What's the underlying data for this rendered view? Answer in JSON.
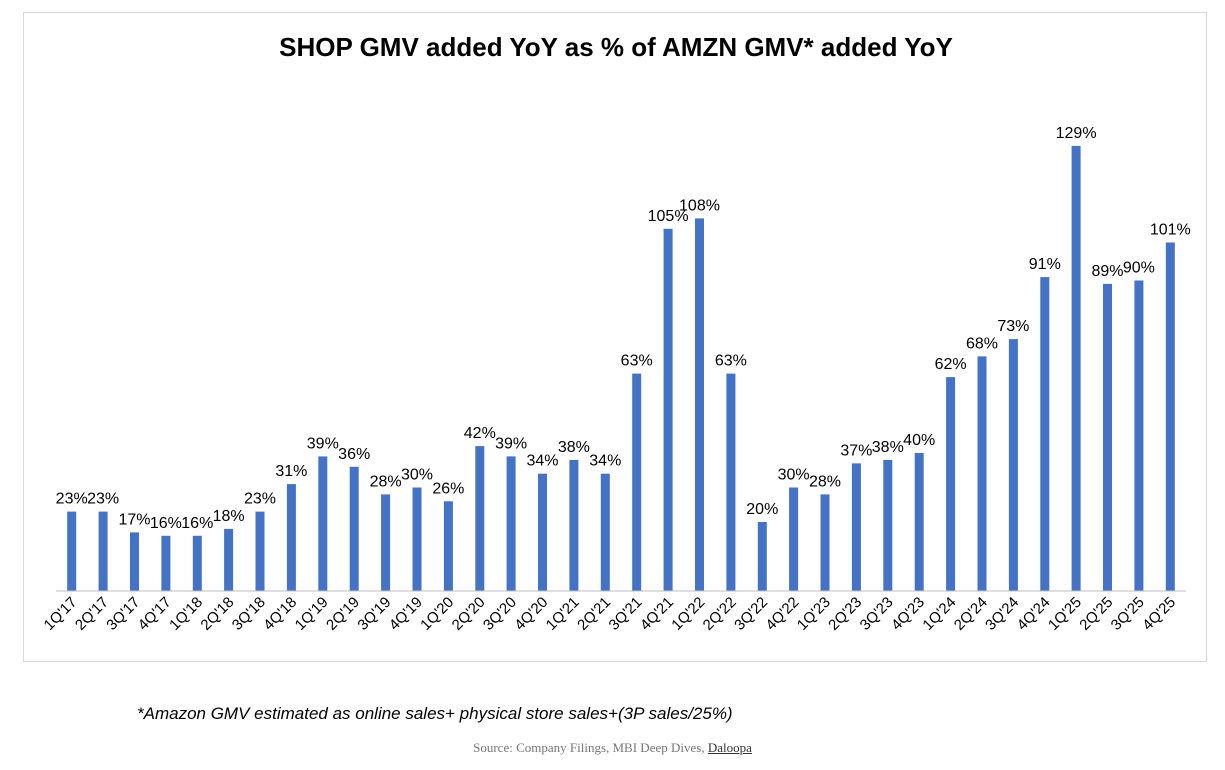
{
  "chart_data": {
    "type": "bar",
    "title": "SHOP GMV added YoY as % of AMZN GMV* added YoY",
    "xlabel": "",
    "ylabel": "",
    "ylim": [
      0,
      140
    ],
    "grid": false,
    "color": "#4472C4",
    "categories": [
      "1Q'17",
      "2Q'17",
      "3Q'17",
      "4Q'17",
      "1Q'18",
      "2Q'18",
      "3Q'18",
      "4Q'18",
      "1Q'19",
      "2Q'19",
      "3Q'19",
      "4Q'19",
      "1Q'20",
      "2Q'20",
      "3Q'20",
      "4Q'20",
      "1Q'21",
      "2Q'21",
      "3Q'21",
      "4Q'21",
      "1Q'22",
      "2Q'22",
      "3Q'22",
      "4Q'22",
      "1Q'23",
      "2Q'23",
      "3Q'23",
      "4Q'23",
      "1Q'24",
      "2Q'24",
      "3Q'24",
      "4Q'24",
      "1Q'25",
      "2Q'25",
      "3Q'25",
      "4Q'25"
    ],
    "values": [
      23,
      23,
      17,
      16,
      16,
      18,
      23,
      31,
      39,
      36,
      28,
      30,
      26,
      42,
      39,
      34,
      38,
      34,
      63,
      105,
      108,
      63,
      20,
      30,
      28,
      37,
      38,
      40,
      62,
      68,
      73,
      91,
      129,
      89,
      90,
      101
    ],
    "labels": [
      "23%",
      "23%",
      "17%",
      "16%",
      "16%",
      "18%",
      "23%",
      "31%",
      "39%",
      "36%",
      "28%",
      "30%",
      "26%",
      "42%",
      "39%",
      "34%",
      "38%",
      "34%",
      "63%",
      "105%",
      "108%",
      "63%",
      "20%",
      "30%",
      "28%",
      "37%",
      "38%",
      "40%",
      "62%",
      "68%",
      "73%",
      "91%",
      "129%",
      "89%",
      "90%",
      "101%"
    ]
  },
  "footnote": "*Amazon GMV estimated as online sales+ physical store sales+(3P sales/25%)",
  "source": {
    "prefix": "Source: Company Filings, MBI Deep Dives, ",
    "link_text": "Daloopa"
  }
}
